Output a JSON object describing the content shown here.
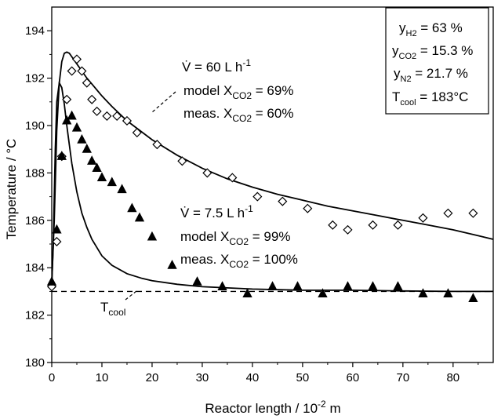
{
  "chart_data": {
    "type": "scatter",
    "xlabel": "Reactor length / 10",
    "xlabel_exp": "-2",
    "xlabel_unit": " m",
    "ylabel": "Temperature / °C",
    "xlim": [
      0,
      88
    ],
    "ylim": [
      180,
      195
    ],
    "x_ticks": [
      0,
      10,
      20,
      30,
      40,
      50,
      60,
      70,
      80
    ],
    "y_ticks": [
      180,
      182,
      184,
      186,
      188,
      190,
      192,
      194
    ],
    "x_tick_labels": [
      "0",
      "10",
      "20",
      "30",
      "40",
      "50",
      "60",
      "70",
      "80"
    ],
    "y_tick_labels": [
      "180",
      "182",
      "184",
      "186",
      "188",
      "190",
      "192",
      "194"
    ],
    "series": [
      {
        "kind": "model_line",
        "color": "#000000",
        "x": [
          0,
          0.5,
          1,
          1.5,
          2,
          2.5,
          3,
          3.5,
          4,
          5,
          6,
          7,
          8,
          10,
          12,
          15,
          20,
          25,
          30,
          35,
          40,
          45,
          50,
          55,
          60,
          65,
          70,
          75,
          80,
          85,
          88
        ],
        "y": [
          183.3,
          186.0,
          189.8,
          191.8,
          192.7,
          193.05,
          193.1,
          193.05,
          192.9,
          192.6,
          192.3,
          192.0,
          191.75,
          191.25,
          190.8,
          190.2,
          189.4,
          188.75,
          188.2,
          187.75,
          187.4,
          187.1,
          186.85,
          186.6,
          186.4,
          186.2,
          186.0,
          185.8,
          185.6,
          185.35,
          185.2
        ]
      },
      {
        "kind": "model_line",
        "color": "#000000",
        "x": [
          0,
          0.3,
          0.7,
          1,
          1.5,
          2,
          2.5,
          3,
          3.5,
          4,
          5,
          6,
          7,
          8,
          10,
          12,
          15,
          18,
          20,
          25,
          30,
          40,
          50,
          60,
          70,
          80,
          88
        ],
        "y": [
          183.3,
          185.0,
          189.0,
          191.0,
          191.8,
          191.6,
          190.9,
          190.0,
          189.2,
          188.4,
          187.2,
          186.3,
          185.7,
          185.2,
          184.5,
          184.1,
          183.75,
          183.55,
          183.45,
          183.3,
          183.2,
          183.1,
          183.05,
          183.05,
          183.02,
          183.0,
          183.0
        ]
      },
      {
        "kind": "measured",
        "marker": "diamond",
        "x": [
          0,
          1,
          2,
          3,
          4,
          5,
          6,
          7,
          8,
          9,
          11,
          13,
          15,
          17,
          21,
          26,
          31,
          36,
          41,
          46,
          51,
          56,
          59,
          64,
          69,
          74,
          79,
          84
        ],
        "y": [
          183.2,
          185.1,
          188.7,
          191.1,
          192.3,
          192.8,
          192.3,
          191.8,
          191.1,
          190.6,
          190.4,
          190.4,
          190.2,
          189.7,
          189.2,
          188.5,
          188.0,
          187.8,
          187.0,
          186.8,
          186.5,
          185.8,
          185.6,
          185.8,
          185.8,
          186.1,
          186.3,
          186.3
        ]
      },
      {
        "kind": "measured",
        "marker": "triangle",
        "x": [
          0,
          1,
          2,
          3,
          4,
          5,
          6,
          7,
          8,
          9,
          10,
          12,
          14,
          16,
          17.5,
          20,
          24,
          29,
          34,
          39,
          44,
          49,
          54,
          59,
          64,
          69,
          74,
          79,
          84
        ],
        "y": [
          183.4,
          185.6,
          188.7,
          190.2,
          190.4,
          189.9,
          189.4,
          189.0,
          188.5,
          188.2,
          187.8,
          187.6,
          187.3,
          186.5,
          186.1,
          185.3,
          184.1,
          183.4,
          183.2,
          182.9,
          183.2,
          183.2,
          182.9,
          183.2,
          183.2,
          183.2,
          182.9,
          182.9,
          182.7
        ]
      },
      {
        "kind": "reference_line",
        "style": "dashed",
        "x": [
          0,
          88
        ],
        "y": [
          183.0,
          183.0
        ]
      }
    ],
    "annotations": {
      "a60": {
        "line1": "V̇ = 60 L h",
        "line1_sup": "-1",
        "line2": "model X",
        "line2_sub": "CO2",
        "line2_val": " = 69%",
        "line3": "meas. X",
        "line3_sub": "CO2",
        "line3_val": " = 60%"
      },
      "a75": {
        "line1": "V̇ = 7.5 L h",
        "line1_sup": "-1",
        "line2": "model X",
        "line2_sub": "CO2",
        "line2_val": " = 99%",
        "line3": "meas. X",
        "line3_sub": "CO2",
        "line3_val": " = 100%"
      },
      "tcool": {
        "main": "T",
        "sub": "cool"
      }
    },
    "legend_box": {
      "position": "top-right",
      "rows": [
        {
          "main": "y",
          "sub": "H2",
          "value": " = 63 %"
        },
        {
          "main": "y",
          "sub": "CO2",
          "value": " = 15.3 %"
        },
        {
          "main": "y",
          "sub": "N2",
          "value": " = 21.7 %"
        },
        {
          "main": "T",
          "sub": "cool",
          "value": " = 183°C"
        }
      ]
    }
  }
}
